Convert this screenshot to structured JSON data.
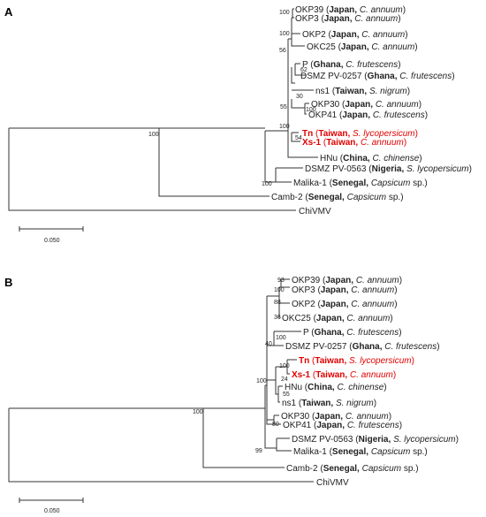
{
  "panels": [
    {
      "label": "A",
      "scale_label": "0.050",
      "taxa": [
        {
          "name": "OKP39",
          "country": "Japan",
          "host": "C. annuum",
          "highlight": false
        },
        {
          "name": "OKP3",
          "country": "Japan",
          "host": "C. annuum",
          "highlight": false
        },
        {
          "name": "OKP2",
          "country": "Japan",
          "host": "C. annuum",
          "highlight": false
        },
        {
          "name": "OKC25",
          "country": "Japan",
          "host": "C. annuum",
          "highlight": false
        },
        {
          "name": "P",
          "country": "Ghana",
          "host": "C. frutescens",
          "highlight": false
        },
        {
          "name": "DSMZ PV-0257",
          "country": "Ghana",
          "host": "C. frutescens",
          "highlight": false
        },
        {
          "name": "ns1",
          "country": "Taiwan",
          "host": "S. nigrum",
          "highlight": false
        },
        {
          "name": "OKP30",
          "country": "Japan",
          "host": "C. annuum",
          "highlight": false
        },
        {
          "name": "OKP41",
          "country": "Japan",
          "host": "C. frutescens",
          "highlight": false
        },
        {
          "name": "Tn",
          "country": "Taiwan",
          "host": "S. lycopersicum",
          "highlight": true
        },
        {
          "name": "Xs-1",
          "country": "Taiwan",
          "host": "C. annuum",
          "highlight": true
        },
        {
          "name": "HNu",
          "country": "China",
          "host": "C. chinense",
          "highlight": false
        },
        {
          "name": "DSMZ PV-0563",
          "country": "Nigeria",
          "host": "S. lycopersicum",
          "highlight": false
        },
        {
          "name": "Malika-1",
          "country": "Senegal",
          "host": "Capsicum",
          "host_suffix": " sp.)",
          "highlight": false
        },
        {
          "name": "Camb-2",
          "country": "Senegal",
          "host": "Capsicum",
          "host_suffix": " sp.)",
          "highlight": false
        },
        {
          "name": "ChiVMV",
          "country": "",
          "host": "",
          "highlight": false
        }
      ],
      "bootstrap": [
        "100",
        "100",
        "56",
        "62",
        "30",
        "100",
        "55",
        "100",
        "54",
        "100",
        "100"
      ]
    },
    {
      "label": "B",
      "scale_label": "0.050",
      "taxa": [
        {
          "name": "OKP39",
          "country": "Japan",
          "host": "C. annuum",
          "highlight": false
        },
        {
          "name": "OKP3",
          "country": "Japan",
          "host": "C. annuum",
          "highlight": false
        },
        {
          "name": "OKP2",
          "country": "Japan",
          "host": "C. annuum",
          "highlight": false
        },
        {
          "name": "OKC25",
          "country": "Japan",
          "host": "C. annuum",
          "highlight": false
        },
        {
          "name": "P",
          "country": "Ghana",
          "host": "C. frutescens",
          "highlight": false
        },
        {
          "name": "DSMZ PV-0257",
          "country": "Ghana",
          "host": "C. frutescens",
          "highlight": false
        },
        {
          "name": "Tn",
          "country": "Taiwan",
          "host": "S. lycopersicum",
          "highlight": true
        },
        {
          "name": "Xs-1",
          "country": "Taiwan",
          "host": "C. annuum",
          "highlight": true
        },
        {
          "name": "HNu",
          "country": "China",
          "host": "C. chinense",
          "highlight": false
        },
        {
          "name": "ns1",
          "country": "Taiwan",
          "host": "S. nigrum",
          "highlight": false
        },
        {
          "name": "OKP30",
          "country": "Japan",
          "host": "C. annuum",
          "highlight": false
        },
        {
          "name": "OKP41",
          "country": "Japan",
          "host": "C. frutescens",
          "highlight": false
        },
        {
          "name": "DSMZ PV-0563",
          "country": "Nigeria",
          "host": "S. lycopersicum",
          "highlight": false
        },
        {
          "name": "Malika-1",
          "country": "Senegal",
          "host": "Capsicum",
          "host_suffix": " sp.)",
          "highlight": false
        },
        {
          "name": "Camb-2",
          "country": "Senegal",
          "host": "Capsicum",
          "host_suffix": " sp.)",
          "highlight": false
        },
        {
          "name": "ChiVMV",
          "country": "",
          "host": "",
          "highlight": false
        }
      ],
      "bootstrap": [
        "93",
        "100",
        "88",
        "36",
        "100",
        "40",
        "100",
        "24",
        "55",
        "100",
        "80",
        "100",
        "99"
      ]
    }
  ],
  "colors": {
    "highlight": "#e00000",
    "branch": "#333333",
    "text": "#222222"
  }
}
